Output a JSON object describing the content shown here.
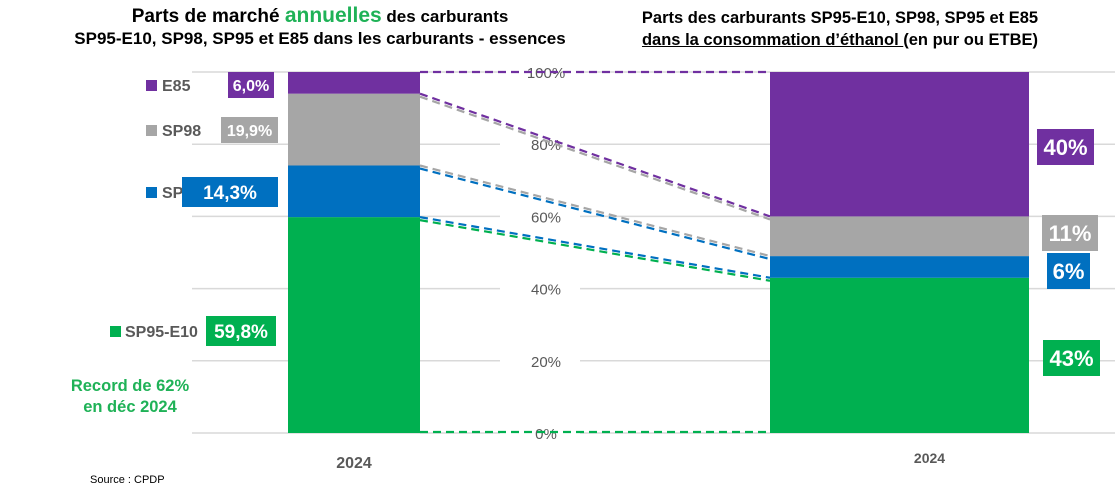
{
  "titles": {
    "left_line1_pre": "Parts de marché ",
    "left_line1_accent": "annuelles",
    "left_line1_post": " des carburants",
    "left_line2": "SP95-E10, SP98, SP95 et E85 dans les carburants - essences",
    "right_line1": "Parts des carburants SP95-E10, SP98, SP95 et E85",
    "right_line2_underlined": "dans la consommation d’éthanol ",
    "right_line2_rest": "(en pur ou ETBE)"
  },
  "annotation": {
    "record_line1": "Record de 62%",
    "record_line2": "en déc 2024"
  },
  "source": "Source : CPDP",
  "colors": {
    "E85": "#7030a0",
    "SP98": "#a6a6a6",
    "SP95": "#0070c0",
    "SP95-E10": "#00b050",
    "grid": "#d9d9d9",
    "axis_text": "#595959"
  },
  "chart_data": [
    {
      "type": "bar",
      "stacked": true,
      "title": "Parts de marché annuelles des carburants SP95-E10, SP98, SP95 et E85 dans les carburants - essences",
      "categories": [
        "2024"
      ],
      "series": [
        {
          "name": "SP95-E10",
          "values": [
            59.8
          ],
          "label": "59,8%"
        },
        {
          "name": "SP95",
          "values": [
            14.3
          ],
          "label": "14,3%"
        },
        {
          "name": "SP98",
          "values": [
            19.9
          ],
          "label": "19,9%"
        },
        {
          "name": "E85",
          "values": [
            6.0
          ],
          "label": "6,0%"
        }
      ],
      "legend": [
        "E85",
        "SP98",
        "SP95",
        "SP95-E10"
      ],
      "legend_placement": "left",
      "ylim": [
        0,
        100
      ],
      "grid": true,
      "xlabel": "",
      "ylabel": ""
    },
    {
      "type": "bar",
      "stacked": true,
      "title": "Parts des carburants SP95-E10, SP98, SP95 et E85 dans la consommation d’éthanol (en pur ou ETBE)",
      "categories": [
        "2024"
      ],
      "series": [
        {
          "name": "SP95-E10",
          "values": [
            43
          ],
          "label": "43%"
        },
        {
          "name": "SP95",
          "values": [
            6
          ],
          "label": "6%"
        },
        {
          "name": "SP98",
          "values": [
            11
          ],
          "label": "11%"
        },
        {
          "name": "E85",
          "values": [
            40
          ],
          "label": "40%"
        }
      ],
      "yticks": [
        "0%",
        "20%",
        "40%",
        "60%",
        "80%",
        "100%"
      ],
      "ylim": [
        0,
        100
      ],
      "grid": true,
      "xlabel": "",
      "ylabel": ""
    }
  ]
}
